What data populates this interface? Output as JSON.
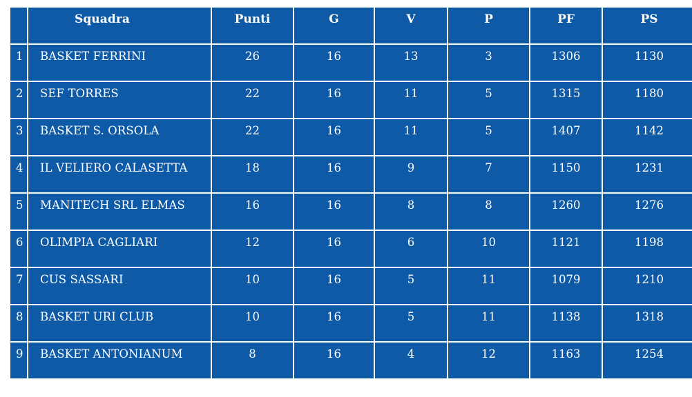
{
  "table": {
    "headers": {
      "number": "",
      "team": "Squadra",
      "points": "Punti",
      "played": "G",
      "won": "V",
      "lost": "P",
      "points_for": "PF",
      "points_against": "PS"
    },
    "rows": [
      {
        "rank": "1",
        "team": "BASKET FERRINI",
        "points": "26",
        "played": "16",
        "won": "13",
        "lost": "3",
        "points_for": "1306",
        "points_against": "1130"
      },
      {
        "rank": "2",
        "team": "SEF TORRES",
        "points": "22",
        "played": "16",
        "won": "11",
        "lost": "5",
        "points_for": "1315",
        "points_against": "1180"
      },
      {
        "rank": "3",
        "team": "BASKET S. ORSOLA",
        "points": "22",
        "played": "16",
        "won": "11",
        "lost": "5",
        "points_for": "1407",
        "points_against": "1142"
      },
      {
        "rank": "4",
        "team": "IL VELIERO CALASETTA",
        "points": "18",
        "played": "16",
        "won": "9",
        "lost": "7",
        "points_for": "1150",
        "points_against": "1231"
      },
      {
        "rank": "5",
        "team": "MANITECH SRL ELMAS",
        "points": "16",
        "played": "16",
        "won": "8",
        "lost": "8",
        "points_for": "1260",
        "points_against": "1276"
      },
      {
        "rank": "6",
        "team": "OLIMPIA CAGLIARI",
        "points": "12",
        "played": "16",
        "won": "6",
        "lost": "10",
        "points_for": "1121",
        "points_against": "1198"
      },
      {
        "rank": "7",
        "team": "CUS SASSARI",
        "points": "10",
        "played": "16",
        "won": "5",
        "lost": "11",
        "points_for": "1079",
        "points_against": "1210"
      },
      {
        "rank": "8",
        "team": "BASKET URI CLUB",
        "points": "10",
        "played": "16",
        "won": "5",
        "lost": "11",
        "points_for": "1138",
        "points_against": "1318"
      },
      {
        "rank": "9",
        "team": "BASKET ANTONIANUM",
        "points": "8",
        "played": "16",
        "won": "4",
        "lost": "12",
        "points_for": "1163",
        "points_against": "1254"
      }
    ]
  },
  "colors": {
    "cell_background": "#0e5aa7",
    "text": "#ffffff",
    "grid_lines": "#ffffff"
  }
}
